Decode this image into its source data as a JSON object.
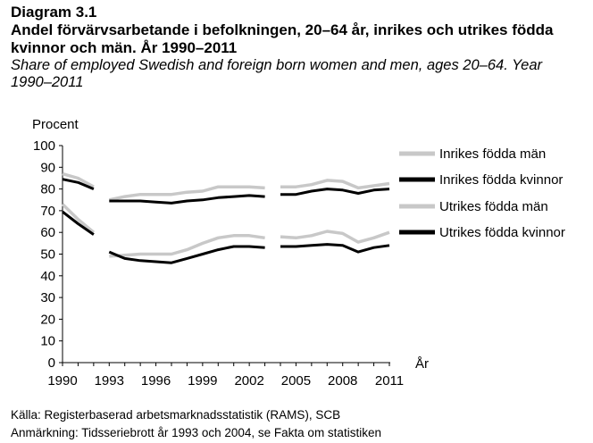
{
  "header": {
    "label": "Diagram 3.1",
    "title": "Andel förvärvsarbetande i befolkningen, 20–64 år, inrikes och utrikes födda kvinnor och män. År 1990–2011",
    "subtitle": "Share of employed Swedish and foreign born women and men, ages 20–64. Year 1990–2011"
  },
  "footer": {
    "source": "Källa: Registerbaserad arbetsmarknadsstatistik (RAMS), SCB",
    "note": "Anmärkning: Tidsseriebrott år 1993 och 2004, se Fakta om statistiken"
  },
  "colors": {
    "light": "#c8c8c8",
    "dark": "#000000"
  },
  "chart_data": {
    "type": "line",
    "ylabel": "Procent",
    "xlabel": "År",
    "ylim": [
      0,
      100
    ],
    "yticks": [
      0,
      10,
      20,
      30,
      40,
      50,
      60,
      70,
      80,
      90,
      100
    ],
    "xticks": [
      1990,
      1993,
      1996,
      1999,
      2002,
      2005,
      2008,
      2011
    ],
    "breaks_after": [
      1992,
      2003
    ],
    "series": [
      {
        "name": "Inrikes födda män",
        "style": "light",
        "points": [
          [
            1990,
            87
          ],
          [
            1991,
            85
          ],
          [
            1992,
            81
          ],
          [
            1993,
            75
          ],
          [
            1994,
            76.5
          ],
          [
            1995,
            77.5
          ],
          [
            1996,
            77.5
          ],
          [
            1997,
            77.5
          ],
          [
            1998,
            78.5
          ],
          [
            1999,
            79
          ],
          [
            2000,
            81
          ],
          [
            2001,
            81
          ],
          [
            2002,
            81
          ],
          [
            2003,
            80.5
          ],
          [
            2004,
            81
          ],
          [
            2005,
            81
          ],
          [
            2006,
            82
          ],
          [
            2007,
            84
          ],
          [
            2008,
            83.5
          ],
          [
            2009,
            80.5
          ],
          [
            2010,
            81.5
          ],
          [
            2011,
            82.5
          ]
        ]
      },
      {
        "name": "Inrikes födda kvinnor",
        "style": "dark",
        "points": [
          [
            1990,
            84.5
          ],
          [
            1991,
            83
          ],
          [
            1992,
            80
          ],
          [
            1993,
            74.5
          ],
          [
            1994,
            74.5
          ],
          [
            1995,
            74.5
          ],
          [
            1996,
            74
          ],
          [
            1997,
            73.5
          ],
          [
            1998,
            74.5
          ],
          [
            1999,
            75
          ],
          [
            2000,
            76
          ],
          [
            2001,
            76.5
          ],
          [
            2002,
            77
          ],
          [
            2003,
            76.5
          ],
          [
            2004,
            77.5
          ],
          [
            2005,
            77.5
          ],
          [
            2006,
            79
          ],
          [
            2007,
            80
          ],
          [
            2008,
            79.5
          ],
          [
            2009,
            78
          ],
          [
            2010,
            79.5
          ],
          [
            2011,
            80
          ]
        ]
      },
      {
        "name": "Utrikes födda män",
        "style": "light",
        "points": [
          [
            1990,
            73
          ],
          [
            1991,
            66
          ],
          [
            1992,
            60
          ],
          [
            1993,
            49
          ],
          [
            1994,
            49.5
          ],
          [
            1995,
            50
          ],
          [
            1996,
            50
          ],
          [
            1997,
            50
          ],
          [
            1998,
            52
          ],
          [
            1999,
            55
          ],
          [
            2000,
            57.5
          ],
          [
            2001,
            58.5
          ],
          [
            2002,
            58.5
          ],
          [
            2003,
            57.5
          ],
          [
            2004,
            58
          ],
          [
            2005,
            57.5
          ],
          [
            2006,
            58.5
          ],
          [
            2007,
            60.5
          ],
          [
            2008,
            59.5
          ],
          [
            2009,
            55.5
          ],
          [
            2010,
            57.5
          ],
          [
            2011,
            60
          ]
        ]
      },
      {
        "name": "Utrikes födda kvinnor",
        "style": "dark",
        "points": [
          [
            1990,
            69.5
          ],
          [
            1991,
            64
          ],
          [
            1992,
            59
          ],
          [
            1993,
            51
          ],
          [
            1994,
            48
          ],
          [
            1995,
            47
          ],
          [
            1996,
            46.5
          ],
          [
            1997,
            46
          ],
          [
            1998,
            48
          ],
          [
            1999,
            50
          ],
          [
            2000,
            52
          ],
          [
            2001,
            53.5
          ],
          [
            2002,
            53.5
          ],
          [
            2003,
            53
          ],
          [
            2004,
            53.5
          ],
          [
            2005,
            53.5
          ],
          [
            2006,
            54
          ],
          [
            2007,
            54.5
          ],
          [
            2008,
            54
          ],
          [
            2009,
            51
          ],
          [
            2010,
            53
          ],
          [
            2011,
            54
          ]
        ]
      }
    ]
  }
}
